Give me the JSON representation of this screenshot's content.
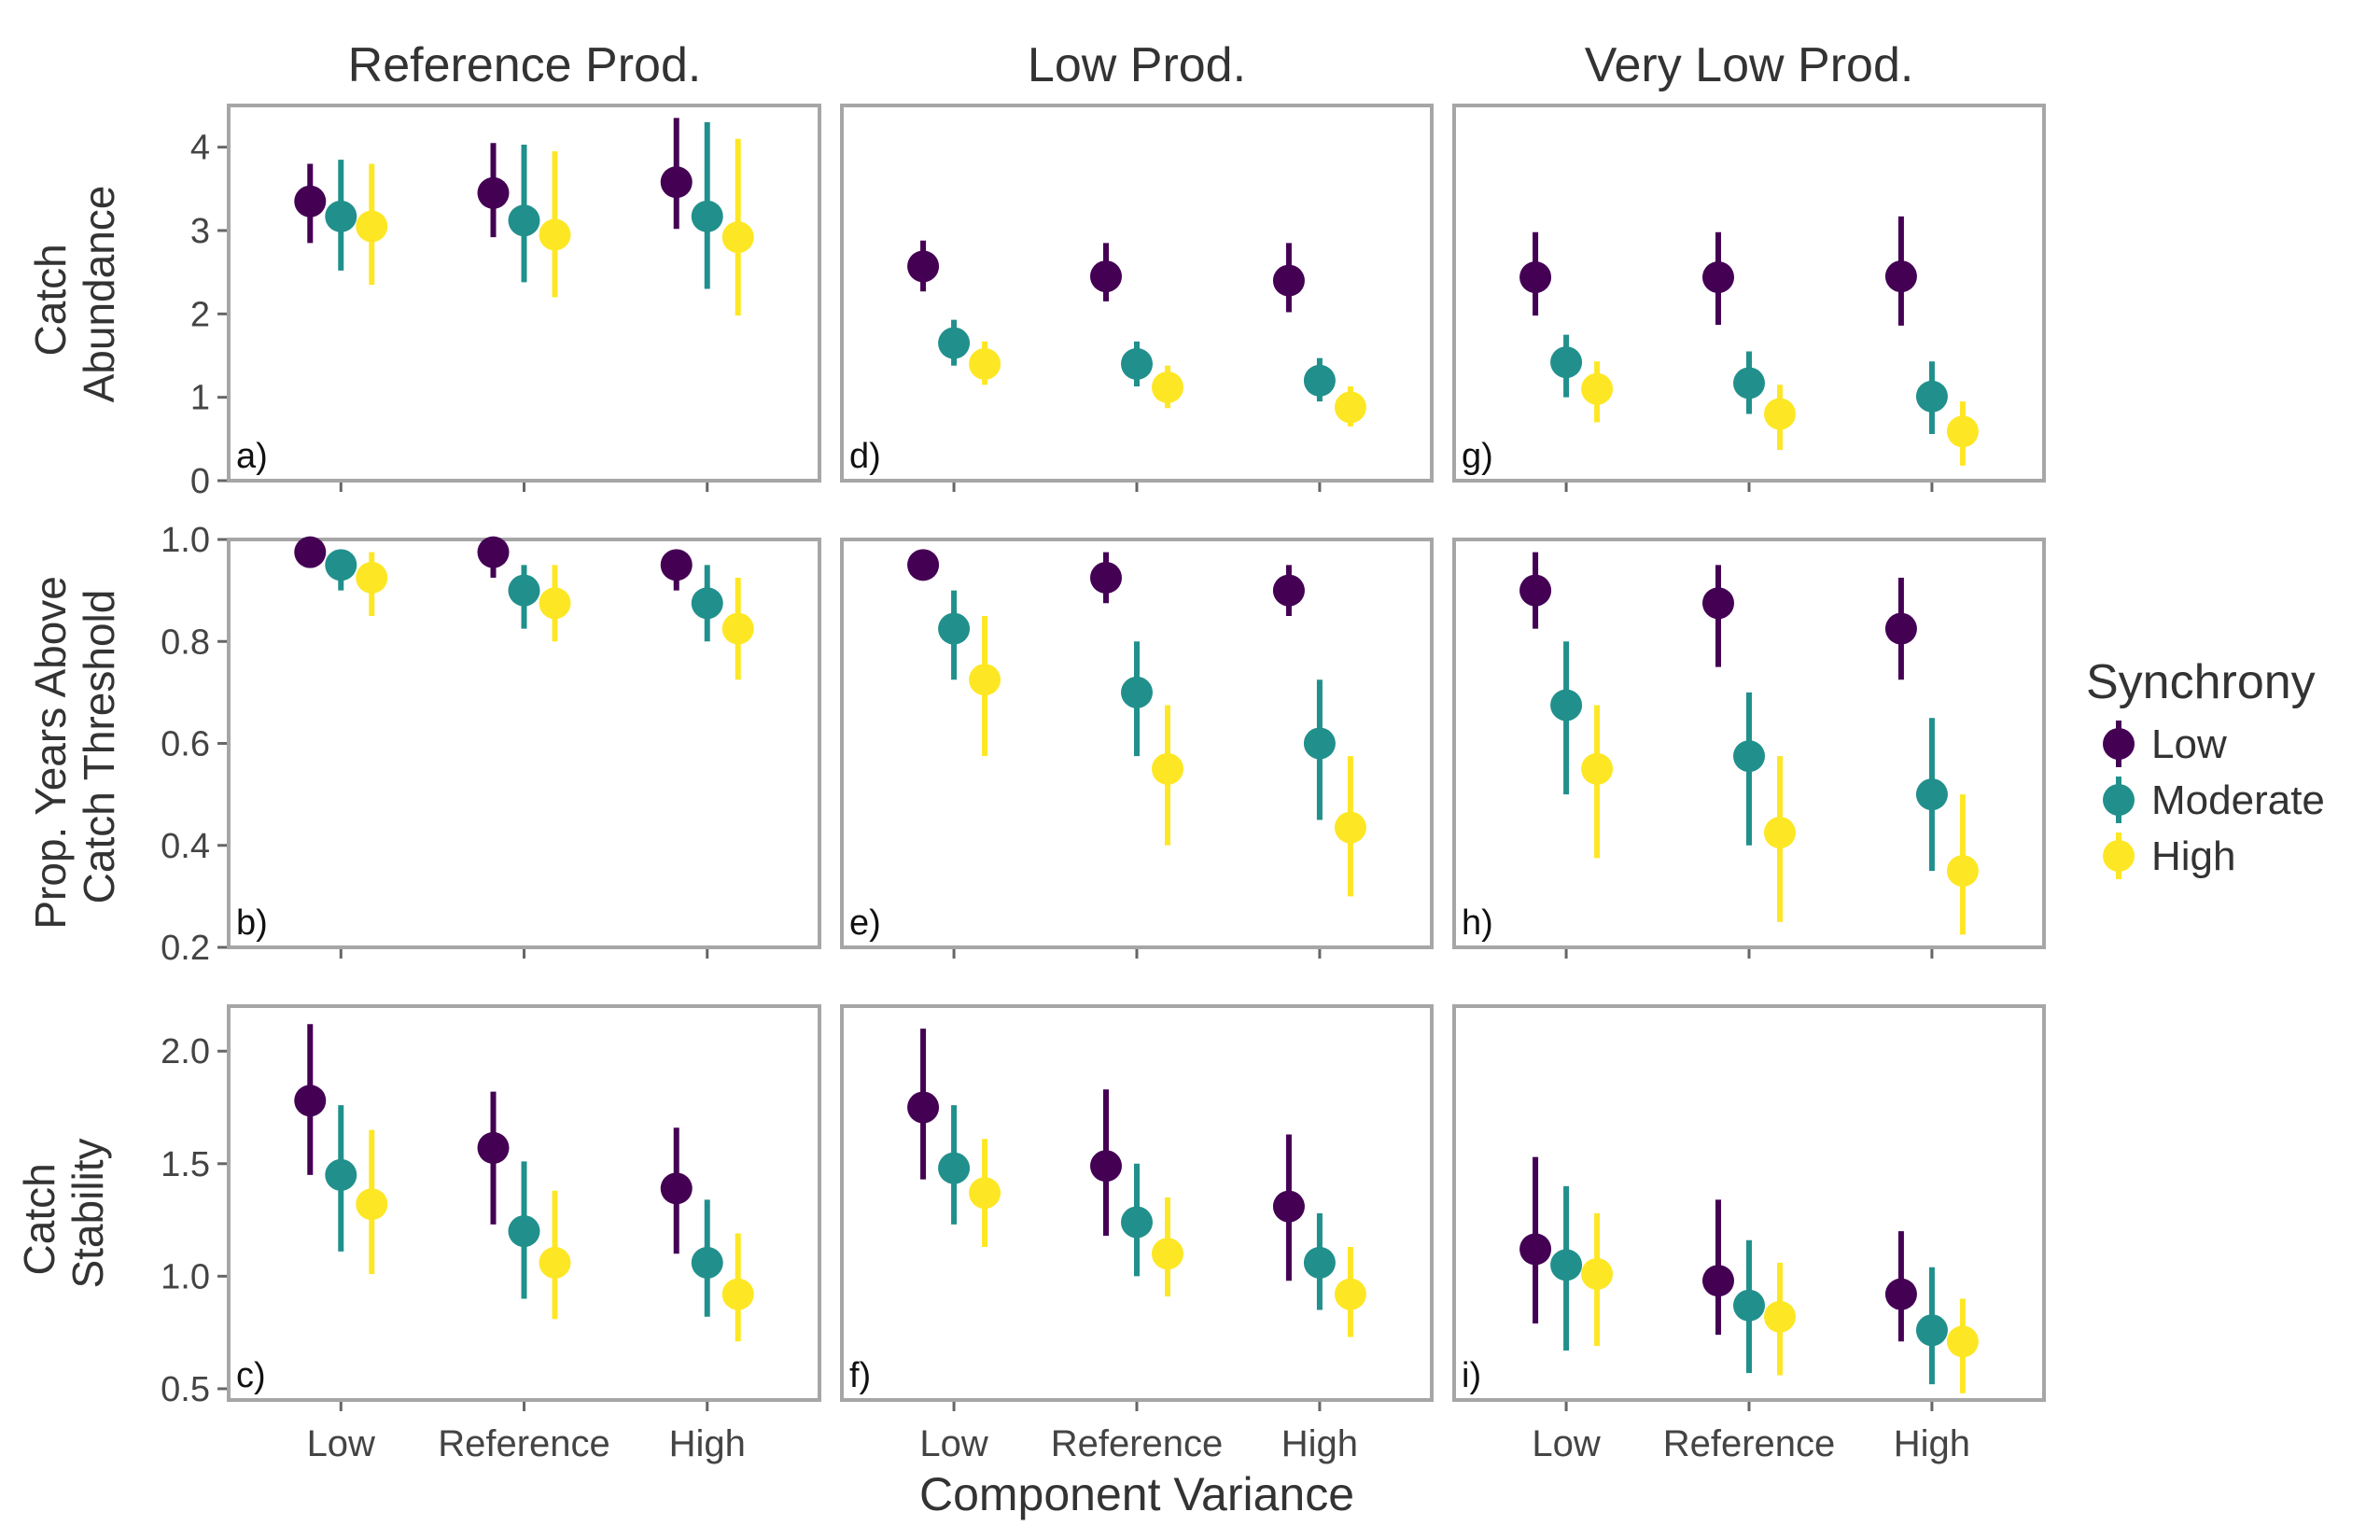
{
  "colors": {
    "Low": "#440154",
    "Moderate": "#21908c",
    "High": "#fde725",
    "panel_border": "#a6a6a6",
    "tick": "#666666"
  },
  "column_titles": [
    "Reference Prod.",
    "Low Prod.",
    "Very Low Prod."
  ],
  "row_labels": [
    [
      "Catch",
      "Abundance"
    ],
    [
      "Prop. Years Above",
      "Catch Threshold"
    ],
    [
      "Catch",
      "Stability"
    ]
  ],
  "x_axis": {
    "title": "Component Variance",
    "categories": [
      "Low",
      "Reference",
      "High"
    ]
  },
  "legend": {
    "title": "Synchrony",
    "items": [
      "Low",
      "Moderate",
      "High"
    ]
  },
  "chart_data": {
    "type": "scatter",
    "subtype": "pointrange",
    "title": "",
    "xlabel": "Component Variance",
    "facet_columns": [
      "Reference Prod.",
      "Low Prod.",
      "Very Low Prod."
    ],
    "categories": [
      "Low",
      "Reference",
      "High"
    ],
    "series_names": [
      "Low",
      "Moderate",
      "High"
    ],
    "rows": [
      {
        "ylabel": "Catch Abundance",
        "ylim": [
          0,
          4.5
        ],
        "yticks": [
          0,
          1,
          2,
          3,
          4
        ],
        "ytick_labels": [
          "0",
          "1",
          "2",
          "3",
          "4"
        ],
        "panels": [
          {
            "tag": "a)",
            "series": [
              {
                "name": "Low",
                "values": [
                  3.35,
                  3.45,
                  3.58
                ],
                "lower": [
                  2.85,
                  2.92,
                  3.02
                ],
                "upper": [
                  3.8,
                  4.05,
                  4.35
                ]
              },
              {
                "name": "Moderate",
                "values": [
                  3.17,
                  3.12,
                  3.17
                ],
                "lower": [
                  2.52,
                  2.38,
                  2.3
                ],
                "upper": [
                  3.85,
                  4.03,
                  4.3
                ]
              },
              {
                "name": "High",
                "values": [
                  3.05,
                  2.95,
                  2.92
                ],
                "lower": [
                  2.35,
                  2.2,
                  1.98
                ],
                "upper": [
                  3.8,
                  3.95,
                  4.1
                ]
              }
            ]
          },
          {
            "tag": "d)",
            "series": [
              {
                "name": "Low",
                "values": [
                  2.57,
                  2.45,
                  2.4
                ],
                "lower": [
                  2.27,
                  2.15,
                  2.02
                ],
                "upper": [
                  2.88,
                  2.85,
                  2.85
                ]
              },
              {
                "name": "Moderate",
                "values": [
                  1.65,
                  1.4,
                  1.2
                ],
                "lower": [
                  1.38,
                  1.13,
                  0.95
                ],
                "upper": [
                  1.93,
                  1.67,
                  1.47
                ]
              },
              {
                "name": "High",
                "values": [
                  1.4,
                  1.12,
                  0.88
                ],
                "lower": [
                  1.15,
                  0.87,
                  0.65
                ],
                "upper": [
                  1.67,
                  1.38,
                  1.13
                ]
              }
            ]
          },
          {
            "tag": "g)",
            "series": [
              {
                "name": "Low",
                "values": [
                  2.44,
                  2.44,
                  2.45
                ],
                "lower": [
                  1.98,
                  1.87,
                  1.86
                ],
                "upper": [
                  2.98,
                  2.98,
                  3.17
                ]
              },
              {
                "name": "Moderate",
                "values": [
                  1.42,
                  1.17,
                  1.01
                ],
                "lower": [
                  1.0,
                  0.8,
                  0.56
                ],
                "upper": [
                  1.75,
                  1.55,
                  1.43
                ]
              },
              {
                "name": "High",
                "values": [
                  1.1,
                  0.8,
                  0.59
                ],
                "lower": [
                  0.7,
                  0.37,
                  0.18
                ],
                "upper": [
                  1.43,
                  1.15,
                  0.95
                ]
              }
            ]
          }
        ]
      },
      {
        "ylabel": "Prop. Years Above Catch Threshold",
        "ylim": [
          0.2,
          1.0
        ],
        "yticks": [
          0.2,
          0.4,
          0.6,
          0.8,
          1.0
        ],
        "ytick_labels": [
          "0.2",
          "0.4",
          "0.6",
          "0.8",
          "1.0"
        ],
        "panels": [
          {
            "tag": "b)",
            "series": [
              {
                "name": "Low",
                "values": [
                  0.975,
                  0.975,
                  0.95
                ],
                "lower": [
                  0.95,
                  0.925,
                  0.9
                ],
                "upper": [
                  1.0,
                  1.0,
                  0.975
                ]
              },
              {
                "name": "Moderate",
                "values": [
                  0.95,
                  0.9,
                  0.875
                ],
                "lower": [
                  0.9,
                  0.825,
                  0.8
                ],
                "upper": [
                  0.975,
                  0.95,
                  0.95
                ]
              },
              {
                "name": "High",
                "values": [
                  0.925,
                  0.875,
                  0.825
                ],
                "lower": [
                  0.85,
                  0.8,
                  0.725
                ],
                "upper": [
                  0.975,
                  0.95,
                  0.925
                ]
              }
            ]
          },
          {
            "tag": "e)",
            "series": [
              {
                "name": "Low",
                "values": [
                  0.95,
                  0.925,
                  0.9
                ],
                "lower": [
                  0.925,
                  0.875,
                  0.85
                ],
                "upper": [
                  0.975,
                  0.975,
                  0.95
                ]
              },
              {
                "name": "Moderate",
                "values": [
                  0.825,
                  0.7,
                  0.6
                ],
                "lower": [
                  0.725,
                  0.575,
                  0.45
                ],
                "upper": [
                  0.9,
                  0.8,
                  0.725
                ]
              },
              {
                "name": "High",
                "values": [
                  0.725,
                  0.55,
                  0.435
                ],
                "lower": [
                  0.575,
                  0.4,
                  0.3
                ],
                "upper": [
                  0.85,
                  0.675,
                  0.575
                ]
              }
            ]
          },
          {
            "tag": "h)",
            "series": [
              {
                "name": "Low",
                "values": [
                  0.9,
                  0.875,
                  0.825
                ],
                "lower": [
                  0.825,
                  0.75,
                  0.725
                ],
                "upper": [
                  0.975,
                  0.95,
                  0.925
                ]
              },
              {
                "name": "Moderate",
                "values": [
                  0.675,
                  0.575,
                  0.5
                ],
                "lower": [
                  0.5,
                  0.4,
                  0.35
                ],
                "upper": [
                  0.8,
                  0.7,
                  0.65
                ]
              },
              {
                "name": "High",
                "values": [
                  0.55,
                  0.425,
                  0.35
                ],
                "lower": [
                  0.375,
                  0.25,
                  0.225
                ],
                "upper": [
                  0.675,
                  0.575,
                  0.5
                ]
              }
            ]
          }
        ]
      },
      {
        "ylabel": "Catch Stability",
        "ylim": [
          0.45,
          2.2
        ],
        "yticks": [
          0.5,
          1.0,
          1.5,
          2.0
        ],
        "ytick_labels": [
          "0.5",
          "1.0",
          "1.5",
          "2.0"
        ],
        "panels": [
          {
            "tag": "c)",
            "series": [
              {
                "name": "Low",
                "values": [
                  1.78,
                  1.57,
                  1.39
                ],
                "lower": [
                  1.45,
                  1.23,
                  1.1
                ],
                "upper": [
                  2.12,
                  1.82,
                  1.66
                ]
              },
              {
                "name": "Moderate",
                "values": [
                  1.45,
                  1.2,
                  1.06
                ],
                "lower": [
                  1.11,
                  0.9,
                  0.82
                ],
                "upper": [
                  1.76,
                  1.51,
                  1.34
                ]
              },
              {
                "name": "High",
                "values": [
                  1.32,
                  1.06,
                  0.92
                ],
                "lower": [
                  1.01,
                  0.81,
                  0.71
                ],
                "upper": [
                  1.65,
                  1.38,
                  1.19
                ]
              }
            ]
          },
          {
            "tag": "f)",
            "series": [
              {
                "name": "Low",
                "values": [
                  1.75,
                  1.49,
                  1.31
                ],
                "lower": [
                  1.43,
                  1.18,
                  0.98
                ],
                "upper": [
                  2.1,
                  1.83,
                  1.63
                ]
              },
              {
                "name": "Moderate",
                "values": [
                  1.48,
                  1.24,
                  1.06
                ],
                "lower": [
                  1.23,
                  1.0,
                  0.85
                ],
                "upper": [
                  1.76,
                  1.5,
                  1.28
                ]
              },
              {
                "name": "High",
                "values": [
                  1.37,
                  1.1,
                  0.92
                ],
                "lower": [
                  1.13,
                  0.91,
                  0.73
                ],
                "upper": [
                  1.61,
                  1.35,
                  1.13
                ]
              }
            ]
          },
          {
            "tag": "i)",
            "series": [
              {
                "name": "Low",
                "values": [
                  1.12,
                  0.98,
                  0.92
                ],
                "lower": [
                  0.79,
                  0.74,
                  0.71
                ],
                "upper": [
                  1.53,
                  1.34,
                  1.2
                ]
              },
              {
                "name": "Moderate",
                "values": [
                  1.05,
                  0.87,
                  0.76
                ],
                "lower": [
                  0.67,
                  0.57,
                  0.52
                ],
                "upper": [
                  1.4,
                  1.16,
                  1.04
                ]
              },
              {
                "name": "High",
                "values": [
                  1.01,
                  0.82,
                  0.71
                ],
                "lower": [
                  0.69,
                  0.56,
                  0.48
                ],
                "upper": [
                  1.28,
                  1.06,
                  0.9
                ]
              }
            ]
          }
        ]
      }
    ]
  }
}
